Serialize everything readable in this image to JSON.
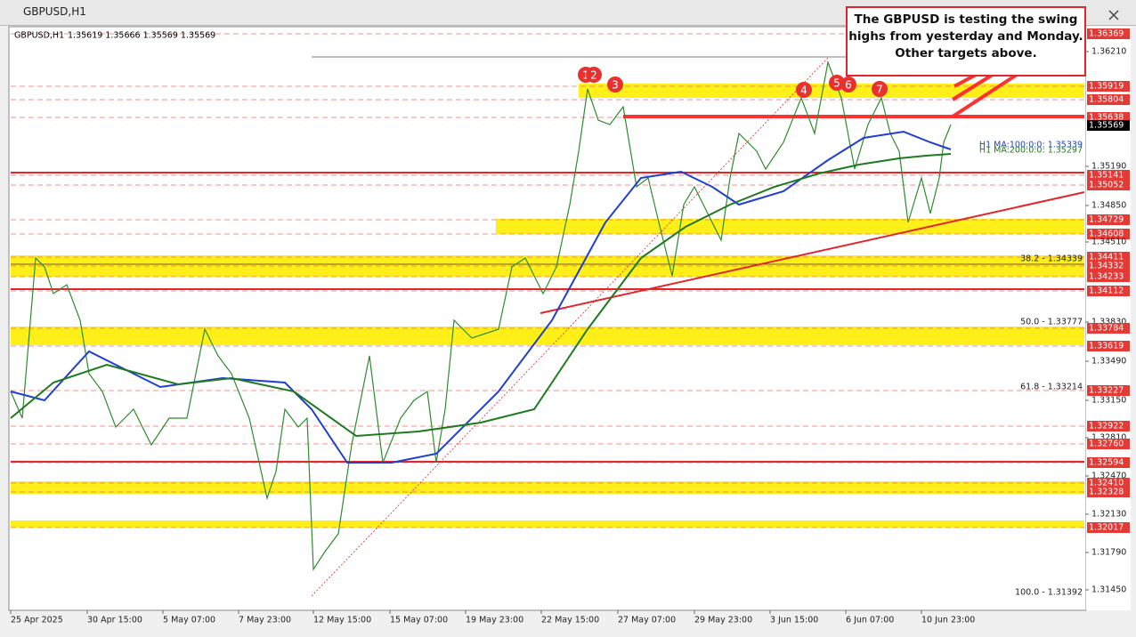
{
  "window": {
    "title": "GBPUSD,H1"
  },
  "chart_header": {
    "symbol": "GBPUSD,H1",
    "quote": "1.35619 1.35666 1.35569 1.35569"
  },
  "annotation": "The GBPUSD is testing the swing highs from yesterday and Monday. Other targets above.",
  "swing_markers": [
    "1",
    "2",
    "3",
    "4",
    "5",
    "6",
    "7"
  ],
  "price_axis": [
    {
      "label": "1.36369",
      "highlight": "red"
    },
    {
      "label": "1.36210",
      "highlight": "none"
    },
    {
      "label": "1.35919",
      "highlight": "red"
    },
    {
      "label": "1.35804",
      "highlight": "red"
    },
    {
      "label": "1.35638",
      "highlight": "red"
    },
    {
      "label": "1.35569",
      "highlight": "current"
    },
    {
      "label": "1.35190",
      "highlight": "none"
    },
    {
      "label": "1.35141",
      "highlight": "red"
    },
    {
      "label": "1.35052",
      "highlight": "red"
    },
    {
      "label": "1.34850",
      "highlight": "none"
    },
    {
      "label": "1.34729",
      "highlight": "red"
    },
    {
      "label": "1.34608",
      "highlight": "red"
    },
    {
      "label": "1.34510",
      "highlight": "none"
    },
    {
      "label": "1.34411",
      "highlight": "red"
    },
    {
      "label": "1.34332",
      "highlight": "red"
    },
    {
      "label": "1.34233",
      "highlight": "red"
    },
    {
      "label": "1.34112",
      "highlight": "red"
    },
    {
      "label": "1.33830",
      "highlight": "none"
    },
    {
      "label": "1.33784",
      "highlight": "red"
    },
    {
      "label": "1.33619",
      "highlight": "red"
    },
    {
      "label": "1.33490",
      "highlight": "none"
    },
    {
      "label": "1.33227",
      "highlight": "red"
    },
    {
      "label": "1.33150",
      "highlight": "none"
    },
    {
      "label": "1.32922",
      "highlight": "red"
    },
    {
      "label": "1.32810",
      "highlight": "none"
    },
    {
      "label": "1.32760",
      "highlight": "red"
    },
    {
      "label": "1.32594",
      "highlight": "red"
    },
    {
      "label": "1.32470",
      "highlight": "none"
    },
    {
      "label": "1.32410",
      "highlight": "red"
    },
    {
      "label": "1.32328",
      "highlight": "red"
    },
    {
      "label": "1.32130",
      "highlight": "none"
    },
    {
      "label": "1.32017",
      "highlight": "red"
    },
    {
      "label": "1.31790",
      "highlight": "none"
    },
    {
      "label": "1.31450",
      "highlight": "none"
    }
  ],
  "time_axis": [
    "25 Apr 2025",
    "30 Apr 15:00",
    "5 May 07:00",
    "7 May 23:00",
    "12 May 15:00",
    "15 May 07:00",
    "19 May 23:00",
    "22 May 15:00",
    "27 May 07:00",
    "29 May 23:00",
    "3 Jun 15:00",
    "6 Jun 07:00",
    "10 Jun 23:00"
  ],
  "fib_levels": [
    "38.2 - 1.34339",
    "50.0 - 1.33777",
    "61.8 - 1.33214",
    "100.0 - 1.31392"
  ],
  "ma_labels": [
    {
      "label": "H1 MA:100:0:0: 1.35339",
      "color": "#1f3fd0"
    },
    {
      "label": "H1 MA:200:0:0: 1.35297",
      "color": "#1f7a1f"
    }
  ]
}
